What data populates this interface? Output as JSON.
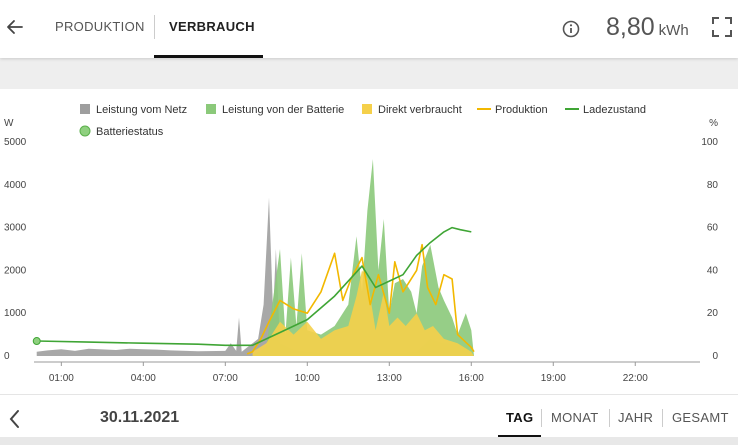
{
  "header": {
    "tabs": [
      {
        "label": "PRODUKTION",
        "active": false
      },
      {
        "label": "VERBRAUCH",
        "active": true
      }
    ],
    "energy_value": "8,80",
    "energy_unit": "kWh",
    "icons": [
      "arrow-left-icon",
      "info-icon",
      "fullscreen-icon"
    ]
  },
  "legend": [
    {
      "label": "Leistung vom Netz",
      "color": "#9e9e9e",
      "kind": "square"
    },
    {
      "label": "Leistung von der Batterie",
      "color": "#8bc97a",
      "kind": "square"
    },
    {
      "label": "Direkt verbraucht",
      "color": "#f5d04a",
      "kind": "square"
    },
    {
      "label": "Produktion",
      "color": "#f2b800",
      "kind": "line"
    },
    {
      "label": "Ladezustand",
      "color": "#3fa535",
      "kind": "line"
    },
    {
      "label": "Batteriestatus",
      "color": "#8fd07f",
      "kind": "circle"
    }
  ],
  "chart_data": {
    "type": "area",
    "y_left_unit": "W",
    "y_right_unit": "%",
    "y_left_ticks": [
      "0",
      "1000",
      "2000",
      "3000",
      "4000",
      "5000"
    ],
    "y_right_ticks": [
      "0",
      "20",
      "40",
      "60",
      "80",
      "100"
    ],
    "ylim_left": [
      0,
      5000
    ],
    "ylim_right": [
      0,
      100
    ],
    "x_ticks": [
      "01:00",
      "04:00",
      "07:00",
      "10:00",
      "13:00",
      "16:00",
      "19:00",
      "22:00"
    ],
    "xlim_hours": [
      0,
      24
    ],
    "grid": false,
    "legend_position": "top",
    "series": [
      {
        "name": "Leistung vom Netz",
        "color": "#9e9e9e",
        "type": "area",
        "x": [
          0.1,
          0.5,
          1.0,
          1.5,
          2.0,
          3.0,
          3.5,
          4.0,
          4.5,
          5.0,
          6.0,
          7.0,
          7.2,
          7.4,
          7.5,
          7.6,
          7.8,
          8.0,
          8.2,
          8.4,
          8.6,
          8.75,
          8.85,
          9.0,
          9.5,
          10.0,
          10.5,
          11.0,
          11.5,
          12.0,
          12.5,
          13.0,
          13.5,
          14.0,
          14.5,
          15.0,
          15.5,
          16.0,
          16.1
        ],
        "y": [
          100,
          130,
          160,
          120,
          170,
          140,
          170,
          160,
          150,
          130,
          110,
          120,
          300,
          120,
          900,
          100,
          200,
          300,
          400,
          1200,
          3700,
          1000,
          2500,
          300,
          150,
          100,
          80,
          80,
          80,
          80,
          80,
          80,
          80,
          100,
          400,
          300,
          300,
          100,
          0
        ]
      },
      {
        "name": "Leistung von der Batterie",
        "color": "#8bc97a",
        "type": "area",
        "x": [
          8.0,
          8.5,
          9.0,
          9.2,
          9.4,
          9.6,
          9.8,
          10.0,
          10.5,
          11.0,
          11.5,
          11.8,
          12.0,
          12.2,
          12.4,
          12.6,
          12.8,
          13.0,
          13.2,
          13.5,
          13.8,
          14.0,
          14.2,
          14.5,
          14.8,
          15.0,
          15.3,
          15.5,
          15.8,
          16.0,
          16.1
        ],
        "y": [
          0,
          200,
          2500,
          500,
          2300,
          700,
          2400,
          600,
          500,
          700,
          1200,
          2800,
          1500,
          3400,
          4600,
          2000,
          3200,
          1000,
          1700,
          1800,
          1500,
          1000,
          2100,
          2600,
          1600,
          1300,
          900,
          500,
          1000,
          600,
          0
        ]
      },
      {
        "name": "Direkt verbraucht",
        "color": "#f5d04a",
        "type": "area",
        "x": [
          8.0,
          8.5,
          9.0,
          9.5,
          10.0,
          10.5,
          11.0,
          11.5,
          11.8,
          12.0,
          12.2,
          12.5,
          12.8,
          13.0,
          13.3,
          13.6,
          14.0,
          14.3,
          14.6,
          15.0,
          15.5,
          16.0,
          16.1
        ],
        "y": [
          100,
          300,
          800,
          500,
          800,
          400,
          600,
          700,
          1400,
          2000,
          1800,
          600,
          1500,
          700,
          900,
          700,
          1000,
          600,
          700,
          400,
          300,
          100,
          0
        ]
      },
      {
        "name": "Produktion",
        "color": "#f2b800",
        "type": "line",
        "x": [
          7.8,
          8.0,
          8.3,
          8.6,
          9.0,
          9.5,
          10.0,
          10.5,
          11.0,
          11.3,
          11.6,
          12.0,
          12.3,
          12.6,
          13.0,
          13.2,
          13.5,
          14.0,
          14.2,
          14.4,
          14.7,
          15.0,
          15.3,
          15.5,
          16.0,
          16.1
        ],
        "y": [
          50,
          100,
          400,
          800,
          1300,
          1100,
          1000,
          1500,
          2400,
          1300,
          1800,
          2300,
          1200,
          1900,
          1000,
          2200,
          1500,
          2000,
          2600,
          1600,
          1200,
          1900,
          1800,
          500,
          200,
          100
        ]
      },
      {
        "name": "Ladezustand",
        "color": "#3fa535",
        "type": "line",
        "x": [
          0.1,
          2.0,
          4.0,
          6.0,
          7.0,
          8.0,
          9.0,
          10.0,
          11.0,
          12.0,
          12.5,
          13.0,
          13.5,
          14.0,
          14.5,
          15.0,
          15.3,
          15.6,
          16.0
        ],
        "y": [
          7,
          6.5,
          6,
          5.5,
          5,
          5,
          11,
          17,
          28,
          42,
          32,
          35,
          38,
          47,
          53,
          58,
          60,
          59,
          58
        ]
      },
      {
        "name": "Batteriestatus",
        "color": "#8fd07f",
        "type": "scatter",
        "x": [
          0.1
        ],
        "y": [
          7
        ]
      }
    ]
  },
  "footer": {
    "date": "30.11.2021",
    "periods": [
      {
        "label": "TAG",
        "active": true
      },
      {
        "label": "MONAT",
        "active": false
      },
      {
        "label": "JAHR",
        "active": false
      },
      {
        "label": "GESAMT",
        "active": false
      }
    ]
  }
}
